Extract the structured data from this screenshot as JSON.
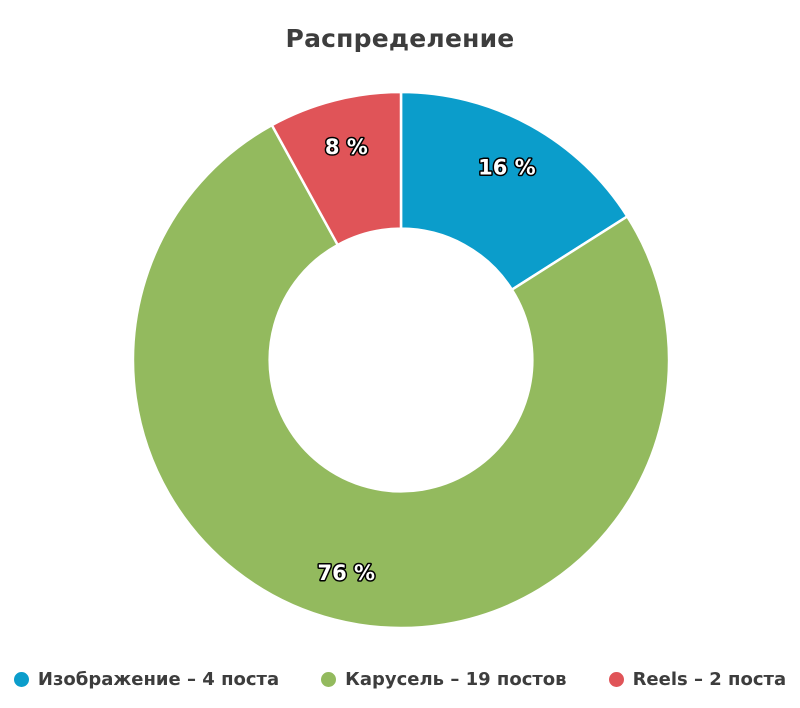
{
  "title": "Распределение",
  "chart_data": {
    "type": "pie",
    "donut": true,
    "title": "Распределение",
    "legend_position": "bottom",
    "inner_radius_ratio": 0.49,
    "separator_color": "#ffffff",
    "title_color": "#3d3d3d",
    "legend_text_color": "#3d3d3d",
    "slices": [
      {
        "key": "image",
        "name": "Изображение",
        "posts": 4,
        "percent": 16,
        "percent_label": "16 %",
        "legend_label": "Изображение – 4 поста",
        "color": "#0b9dcb"
      },
      {
        "key": "carousel",
        "name": "Карусель",
        "posts": 19,
        "percent": 76,
        "percent_label": "76 %",
        "legend_label": "Карусель – 19 постов",
        "color": "#93ba5e"
      },
      {
        "key": "reels",
        "name": "Reels",
        "posts": 2,
        "percent": 8,
        "percent_label": "8 %",
        "legend_label": "Reels – 2 поста",
        "color": "#e05458"
      }
    ]
  }
}
